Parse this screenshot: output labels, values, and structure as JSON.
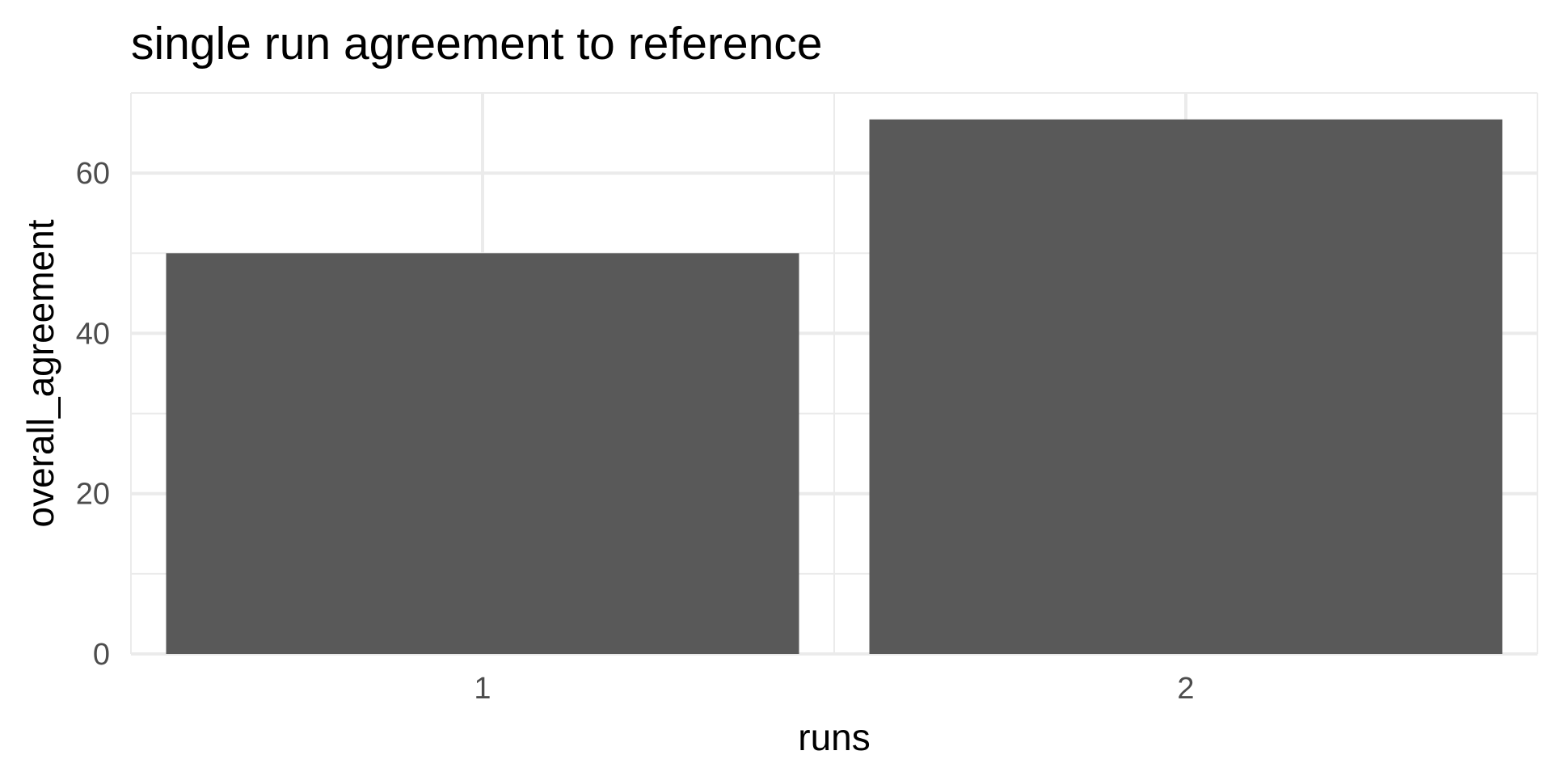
{
  "chart_data": {
    "type": "bar",
    "title": "single run agreement to reference",
    "xlabel": "runs",
    "ylabel": "overall_agreement",
    "categories": [
      "1",
      "2"
    ],
    "values": [
      50,
      66.7
    ],
    "ylim": [
      0,
      70
    ],
    "yticks": [
      0,
      20,
      40,
      60
    ],
    "grid": true,
    "bar_color": "#595959",
    "grid_color": "#ebebeb",
    "tick_label_color": "#4d4d4d"
  }
}
